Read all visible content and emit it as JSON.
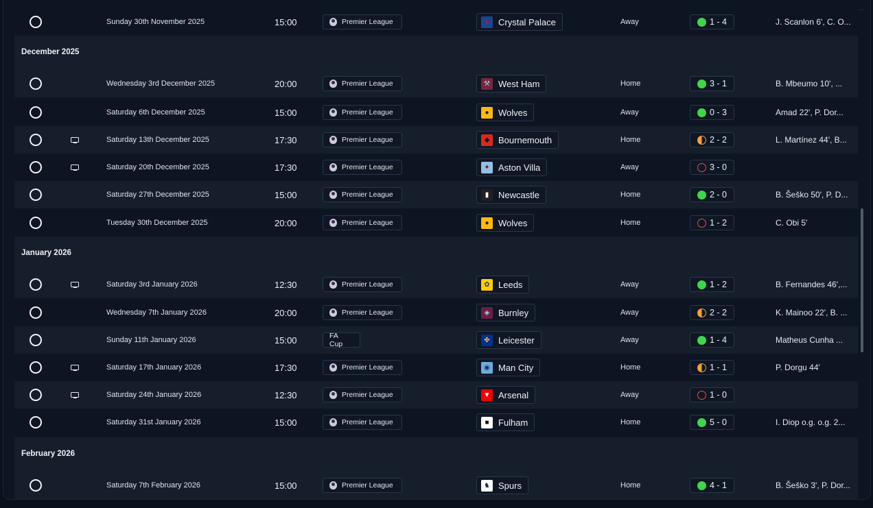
{
  "months": [
    "December 2025",
    "January 2026",
    "February 2026"
  ],
  "colors": {
    "win": "#3fd64a",
    "draw": "#f5a03b",
    "loss": "#ee4b4b"
  },
  "fixtures": [
    {
      "date": "Sunday 30th November 2025",
      "time": "15:00",
      "comp": "Premier League",
      "opp": "Crystal Palace",
      "crest": "crystal-palace-crest",
      "venue": "Away",
      "result": "win",
      "score": "1 - 4",
      "scorers": "J. Scanlon 6', C. O...",
      "tv": false
    },
    {
      "date": "Wednesday 3rd December 2025",
      "time": "20:00",
      "comp": "Premier League",
      "opp": "West Ham",
      "crest": "west-ham-crest",
      "venue": "Home",
      "result": "win",
      "score": "3 - 1",
      "scorers": "B. Mbeumo 10', ...",
      "tv": false
    },
    {
      "date": "Saturday 6th December 2025",
      "time": "15:00",
      "comp": "Premier League",
      "opp": "Wolves",
      "crest": "wolves-crest",
      "venue": "Away",
      "result": "win",
      "score": "0 - 3",
      "scorers": "Amad 22', P. Dor...",
      "tv": false
    },
    {
      "date": "Saturday 13th December 2025",
      "time": "17:30",
      "comp": "Premier League",
      "opp": "Bournemouth",
      "crest": "bournemouth-crest",
      "venue": "Home",
      "result": "draw",
      "score": "2 - 2",
      "scorers": "L. Martínez 44', B...",
      "tv": true
    },
    {
      "date": "Saturday 20th December 2025",
      "time": "17:30",
      "comp": "Premier League",
      "opp": "Aston Villa",
      "crest": "aston-villa-crest",
      "venue": "Away",
      "result": "loss",
      "score": "3 - 0",
      "scorers": "",
      "tv": true
    },
    {
      "date": "Saturday 27th December 2025",
      "time": "15:00",
      "comp": "Premier League",
      "opp": "Newcastle",
      "crest": "newcastle-crest",
      "venue": "Home",
      "result": "win",
      "score": "2 - 0",
      "scorers": "B. Šeško 50', P. D...",
      "tv": false
    },
    {
      "date": "Tuesday 30th December 2025",
      "time": "20:00",
      "comp": "Premier League",
      "opp": "Wolves",
      "crest": "wolves-crest",
      "venue": "Home",
      "result": "loss",
      "score": "1 - 2",
      "scorers": "C. Obi 5'",
      "tv": false
    },
    {
      "date": "Saturday 3rd January 2026",
      "time": "12:30",
      "comp": "Premier League",
      "opp": "Leeds",
      "crest": "leeds-crest",
      "venue": "Away",
      "result": "win",
      "score": "1 - 2",
      "scorers": "B. Fernandes 46',...",
      "tv": true
    },
    {
      "date": "Wednesday 7th January 2026",
      "time": "20:00",
      "comp": "Premier League",
      "opp": "Burnley",
      "crest": "burnley-crest",
      "venue": "Away",
      "result": "draw",
      "score": "2 - 2",
      "scorers": "K. Mainoo 22', B. ...",
      "tv": false
    },
    {
      "date": "Sunday 11th January 2026",
      "time": "15:00",
      "comp": "FA Cup",
      "opp": "Leicester",
      "crest": "leicester-crest",
      "venue": "Away",
      "result": "win",
      "score": "1 - 4",
      "scorers": "Matheus Cunha ...",
      "tv": false
    },
    {
      "date": "Saturday 17th January 2026",
      "time": "17:30",
      "comp": "Premier League",
      "opp": "Man City",
      "crest": "man-city-crest",
      "venue": "Home",
      "result": "draw",
      "score": "1 - 1",
      "scorers": "P. Dorgu 44'",
      "tv": true
    },
    {
      "date": "Saturday 24th January 2026",
      "time": "12:30",
      "comp": "Premier League",
      "opp": "Arsenal",
      "crest": "arsenal-crest",
      "venue": "Away",
      "result": "loss",
      "score": "1 - 0",
      "scorers": "",
      "tv": true
    },
    {
      "date": "Saturday 31st January 2026",
      "time": "15:00",
      "comp": "Premier League",
      "opp": "Fulham",
      "crest": "fulham-crest",
      "venue": "Home",
      "result": "win",
      "score": "5 - 0",
      "scorers": "I. Diop o.g. o.g.  2...",
      "tv": false
    },
    {
      "date": "Saturday 7th February 2026",
      "time": "15:00",
      "comp": "Premier League",
      "opp": "Spurs",
      "crest": "spurs-crest",
      "venue": "Home",
      "result": "win",
      "score": "4 - 1",
      "scorers": "B. Šeško 3', P. Dor...",
      "tv": false
    }
  ]
}
